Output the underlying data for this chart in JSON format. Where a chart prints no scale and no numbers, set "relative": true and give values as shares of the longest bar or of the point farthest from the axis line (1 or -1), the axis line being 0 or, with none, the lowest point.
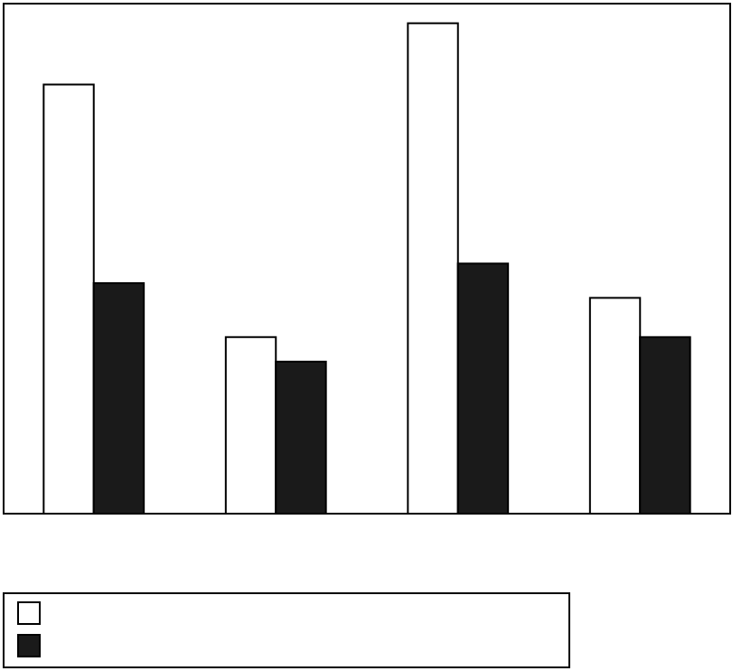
{
  "chart_data": {
    "type": "bar",
    "relative": true,
    "categories": [
      null,
      null,
      null,
      null
    ],
    "series": [
      {
        "color": "#ffffff",
        "values": [
          0.875,
          0.36,
          1,
          0.44
        ]
      },
      {
        "color": "#1a1a1a",
        "values": [
          0.47,
          0.31,
          0.51,
          0.36
        ]
      }
    ]
  }
}
